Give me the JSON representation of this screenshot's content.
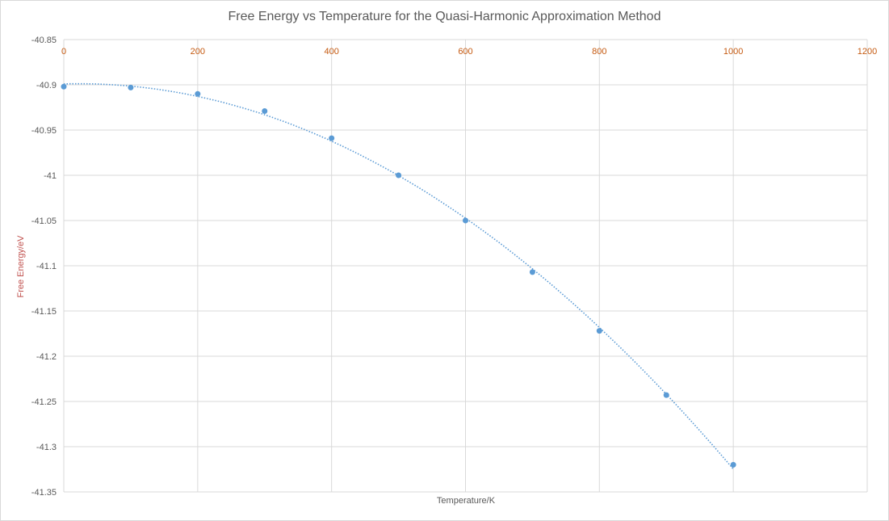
{
  "chart_data": {
    "type": "scatter",
    "title": "Free Energy vs Temperature for the Quasi-Harmonic Approximation Method",
    "xlabel": "Temperature/K",
    "ylabel": "Free Energy/eV",
    "xlim": [
      0,
      1200
    ],
    "ylim": [
      -41.35,
      -40.85
    ],
    "xticks": [
      "0",
      "200",
      "400",
      "600",
      "800",
      "1000",
      "1200"
    ],
    "yticks": [
      "-40.85",
      "-40.9",
      "-40.95",
      "-41",
      "-41.05",
      "-41.1",
      "-41.15",
      "-41.2",
      "-41.25",
      "-41.3",
      "-41.35"
    ],
    "grid": true,
    "trendline": "polynomial order 2 (dotted)",
    "color": "#5b9bd5",
    "x": [
      0,
      100,
      200,
      300,
      400,
      500,
      600,
      700,
      800,
      900,
      1000
    ],
    "y": [
      -40.902,
      -40.903,
      -40.91,
      -40.929,
      -40.959,
      -41.0,
      -41.05,
      -41.107,
      -41.172,
      -41.243,
      -41.32
    ]
  }
}
